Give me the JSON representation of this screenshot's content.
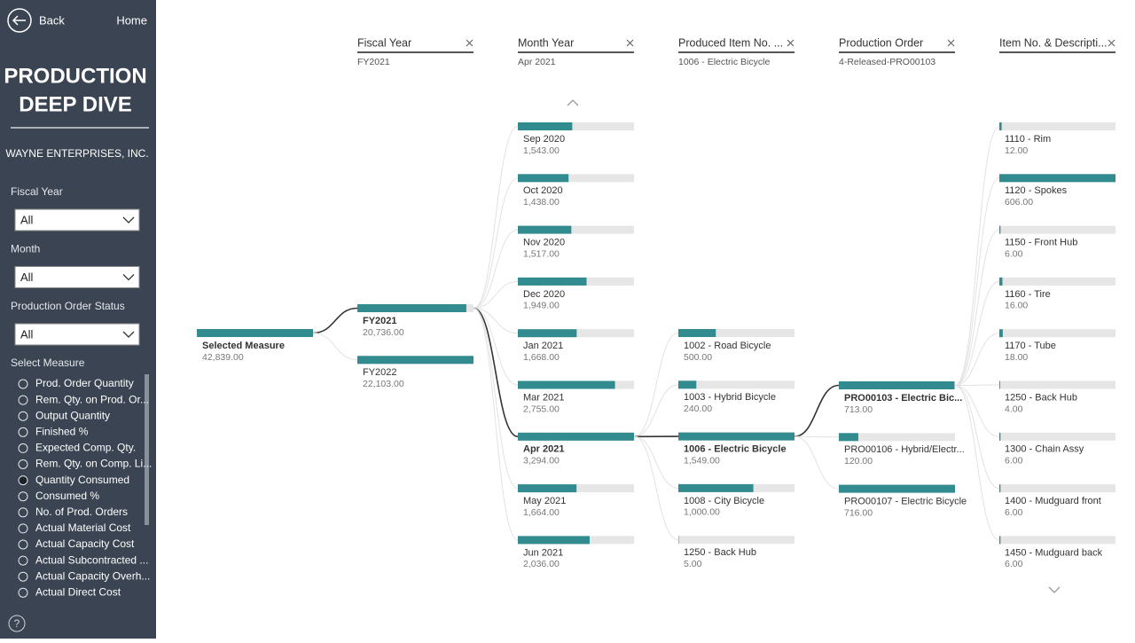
{
  "sidebar": {
    "back": "Back",
    "home": "Home",
    "title_lines": [
      "PRODUCTION",
      "DEEP DIVE"
    ],
    "company": "WAYNE ENTERPRISES, INC.",
    "filters": [
      {
        "label": "Fiscal Year",
        "value": "All"
      },
      {
        "label": "Month",
        "value": "All"
      },
      {
        "label": "Production Order Status",
        "value": "All"
      }
    ],
    "measure_heading": "Select Measure",
    "measures": [
      "Prod. Order Quantity",
      "Rem. Qty. on Prod. Or...",
      "Output Quantity",
      "Finished %",
      "Expected Comp. Qty.",
      "Rem. Qty. on Comp. Li...",
      "Quantity Consumed",
      "Consumed %",
      "No. of Prod. Orders",
      "Actual Material Cost",
      "Actual Capacity Cost",
      "Actual Subcontracted ...",
      "Actual Capacity Overh...",
      "Actual Direct Cost"
    ],
    "selected_measure": 6
  },
  "tree": {
    "root": {
      "label": "Selected Measure",
      "value": 42839,
      "value_label": "42,839.00"
    },
    "levels": [
      {
        "header": "Fiscal Year",
        "selection": "FY2021",
        "expanded": 0,
        "nodes": [
          {
            "label": "FY2021",
            "value": 20736,
            "value_label": "20,736.00"
          },
          {
            "label": "FY2022",
            "value": 22103,
            "value_label": "22,103.00"
          }
        ]
      },
      {
        "header": "Month Year",
        "selection": "Apr 2021",
        "expanded": 6,
        "nodes": [
          {
            "label": "Sep 2020",
            "value": 1543,
            "value_label": "1,543.00"
          },
          {
            "label": "Oct 2020",
            "value": 1438,
            "value_label": "1,438.00"
          },
          {
            "label": "Nov 2020",
            "value": 1517,
            "value_label": "1,517.00"
          },
          {
            "label": "Dec 2020",
            "value": 1949,
            "value_label": "1,949.00"
          },
          {
            "label": "Jan 2021",
            "value": 1668,
            "value_label": "1,668.00"
          },
          {
            "label": "Mar 2021",
            "value": 2755,
            "value_label": "2,755.00"
          },
          {
            "label": "Apr 2021",
            "value": 3294,
            "value_label": "3,294.00"
          },
          {
            "label": "May 2021",
            "value": 1664,
            "value_label": "1,664.00"
          },
          {
            "label": "Jun 2021",
            "value": 2036,
            "value_label": "2,036.00"
          }
        ]
      },
      {
        "header": "Produced Item No. ...",
        "selection": "1006 - Electric Bicycle",
        "expanded": 2,
        "nodes": [
          {
            "label": "1002 - Road Bicycle",
            "value": 500,
            "value_label": "500.00"
          },
          {
            "label": "1003 - Hybrid Bicycle",
            "value": 240,
            "value_label": "240.00"
          },
          {
            "label": "1006 - Electric Bicycle",
            "value": 1549,
            "value_label": "1,549.00"
          },
          {
            "label": "1008 - City Bicycle",
            "value": 1000,
            "value_label": "1,000.00"
          },
          {
            "label": "1250 - Back Hub",
            "value": 5,
            "value_label": "5.00"
          }
        ]
      },
      {
        "header": "Production Order",
        "selection": "4-Released-PRO00103",
        "expanded": 0,
        "nodes": [
          {
            "label": "PRO00103 - Electric Bic...",
            "value": 713,
            "value_label": "713.00"
          },
          {
            "label": "PRO00106 - Hybrid/Electr...",
            "value": 120,
            "value_label": "120.00"
          },
          {
            "label": "PRO00107 - Electric Bicycle",
            "value": 716,
            "value_label": "716.00"
          }
        ]
      },
      {
        "header": "Item No. & Descripti...",
        "nodes": [
          {
            "label": "1110 - Rim",
            "value": 12,
            "value_label": "12.00"
          },
          {
            "label": "1120 - Spokes",
            "value": 606,
            "value_label": "606.00"
          },
          {
            "label": "1150 - Front Hub",
            "value": 6,
            "value_label": "6.00"
          },
          {
            "label": "1160 - Tire",
            "value": 16,
            "value_label": "16.00"
          },
          {
            "label": "1170 - Tube",
            "value": 18,
            "value_label": "18.00"
          },
          {
            "label": "1250 - Back Hub",
            "value": 4,
            "value_label": "4.00"
          },
          {
            "label": "1300 - Chain Assy",
            "value": 6,
            "value_label": "6.00"
          },
          {
            "label": "1400 - Mudguard front",
            "value": 6,
            "value_label": "6.00"
          },
          {
            "label": "1450 - Mudguard back",
            "value": 6,
            "value_label": "6.00"
          }
        ]
      }
    ]
  }
}
